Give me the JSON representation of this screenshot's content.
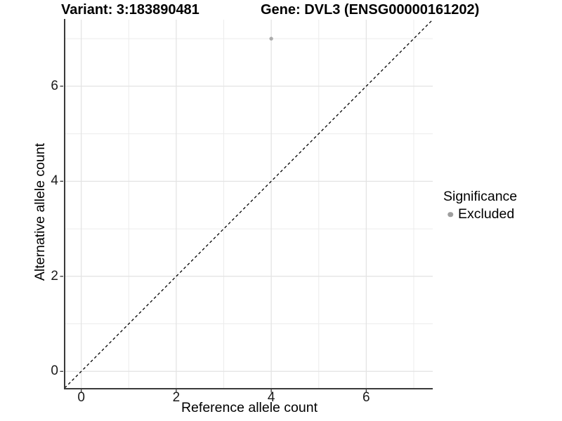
{
  "header": {
    "variant_title": "Variant: 3:183890481",
    "gene_title": "Gene: DVL3 (ENSG00000161202)"
  },
  "legend": {
    "title": "Significance",
    "items": [
      {
        "label": "Excluded",
        "swatch_color": "#9e9e9e"
      }
    ]
  },
  "chart_data": {
    "type": "scatter",
    "title_left": "Variant: 3:183890481",
    "title_right": "Gene: DVL3 (ENSG00000161202)",
    "xlabel": "Reference allele count",
    "ylabel": "Alternative allele count",
    "xlim": [
      -0.35,
      7.4
    ],
    "ylim": [
      -0.35,
      7.4
    ],
    "x_ticks": [
      0,
      2,
      4,
      6
    ],
    "y_ticks": [
      0,
      2,
      4,
      6
    ],
    "x_minor_ticks": [
      1,
      3,
      5,
      7
    ],
    "y_minor_ticks": [
      1,
      3,
      5,
      7
    ],
    "grid": true,
    "legend_position": "right",
    "series": [
      {
        "name": "Excluded",
        "color": "#ababab",
        "points": [
          {
            "x": 4,
            "y": 7
          }
        ]
      }
    ],
    "reference_line": {
      "type": "identity",
      "slope": 1,
      "intercept": 0,
      "style": "dashed",
      "color": "#000000"
    }
  },
  "colors": {
    "background": "#ffffff",
    "grid_major": "#e3e3e3",
    "grid_minor": "#ececec",
    "axis_line": "#3a3a3a",
    "tick_mark": "#333333",
    "tick_text": "#1a1a1a",
    "point": "#ababab",
    "legend_dot": "#9e9e9e"
  }
}
